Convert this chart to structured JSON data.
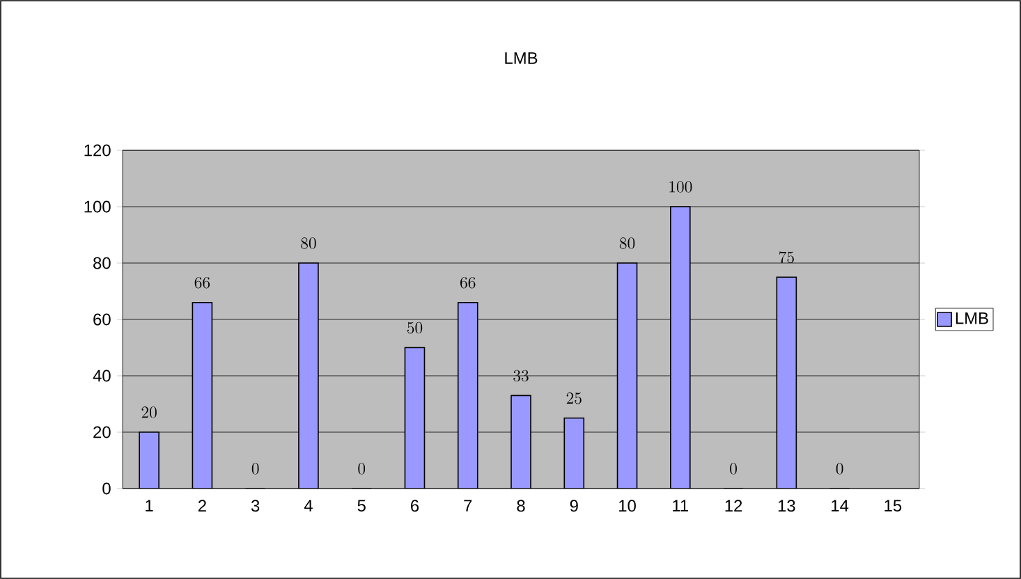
{
  "chart_data": {
    "type": "bar",
    "title": "LMB",
    "categories": [
      "1",
      "2",
      "3",
      "4",
      "5",
      "6",
      "7",
      "8",
      "9",
      "10",
      "11",
      "12",
      "13",
      "14",
      "15"
    ],
    "series": [
      {
        "name": "LMB",
        "color": "#9999ff",
        "values": [
          20,
          66,
          0,
          80,
          0,
          50,
          66,
          33,
          25,
          80,
          100,
          0,
          75,
          0,
          null
        ]
      }
    ],
    "ylim": [
      0,
      120
    ],
    "yticks": [
      0,
      20,
      40,
      60,
      80,
      100,
      120
    ],
    "grid": "y",
    "legend": "right",
    "data_labels": true
  }
}
